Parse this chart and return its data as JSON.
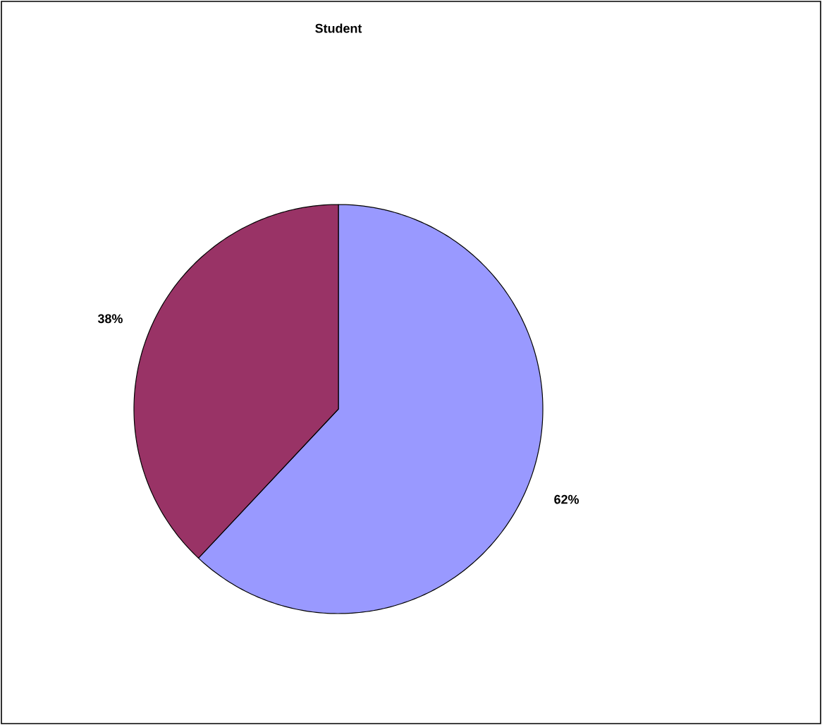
{
  "chart_data": {
    "type": "pie",
    "title": "Student",
    "categories": [
      null,
      null
    ],
    "values": [
      62,
      38
    ],
    "colors": [
      "#9999ff",
      "#993366"
    ],
    "value_labels": [
      "62%",
      "38%"
    ]
  }
}
